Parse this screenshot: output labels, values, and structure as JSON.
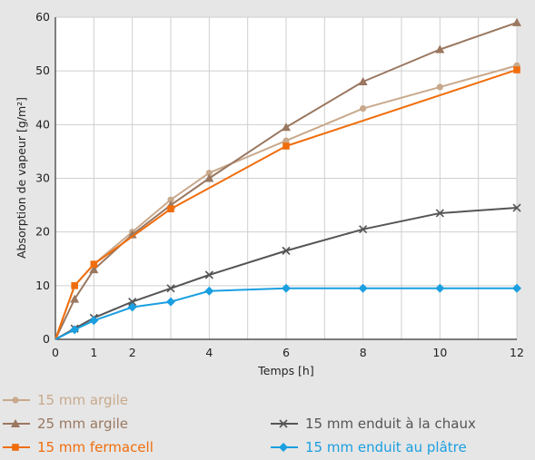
{
  "chart_data": {
    "type": "line",
    "title": "",
    "xlabel": "Temps [h]",
    "ylabel": "Absorption de vapeur [g/m²]",
    "xlim": [
      0,
      12
    ],
    "ylim": [
      0,
      60
    ],
    "x_ticks": [
      0,
      1,
      2,
      4,
      6,
      8,
      10,
      12
    ],
    "y_ticks": [
      0,
      10,
      20,
      30,
      40,
      50,
      60
    ],
    "grid": true,
    "legend_position": "bottom",
    "series": [
      {
        "name": "15 mm argile",
        "color": "#c8a98c",
        "marker": "circle",
        "x": [
          0,
          0.5,
          1,
          2,
          3,
          4,
          6,
          8,
          10,
          12
        ],
        "y": [
          0,
          10,
          14,
          20,
          26,
          31,
          37,
          43,
          47,
          51
        ]
      },
      {
        "name": "25 mm argile",
        "color": "#9a7760",
        "marker": "triangle",
        "x": [
          0,
          0.5,
          1,
          2,
          3,
          4,
          6,
          8,
          10,
          12
        ],
        "y": [
          0,
          7.5,
          13,
          19.5,
          25,
          30,
          39.5,
          48,
          54,
          59
        ]
      },
      {
        "name": "15 mm fermacell",
        "color": "#f06d0c",
        "marker": "square",
        "x": [
          0,
          0.5,
          1,
          3,
          6,
          12
        ],
        "y": [
          0,
          10,
          14,
          24.3,
          36,
          50.2
        ]
      },
      {
        "name": "15 mm enduit à la chaux",
        "color": "#555555",
        "marker": "x",
        "x": [
          0,
          0.5,
          1,
          2,
          3,
          4,
          6,
          8,
          10,
          12
        ],
        "y": [
          0,
          2,
          4,
          7,
          9.5,
          12,
          16.5,
          20.5,
          23.5,
          24.5
        ]
      },
      {
        "name": "15 mm enduit au plâtre",
        "color": "#1a9fe0",
        "marker": "diamond",
        "x": [
          0,
          0.5,
          1,
          2,
          3,
          4,
          6,
          8,
          10,
          12
        ],
        "y": [
          0,
          1.8,
          3.5,
          6,
          7,
          9,
          9.5,
          9.5,
          9.5,
          9.5
        ]
      }
    ]
  }
}
